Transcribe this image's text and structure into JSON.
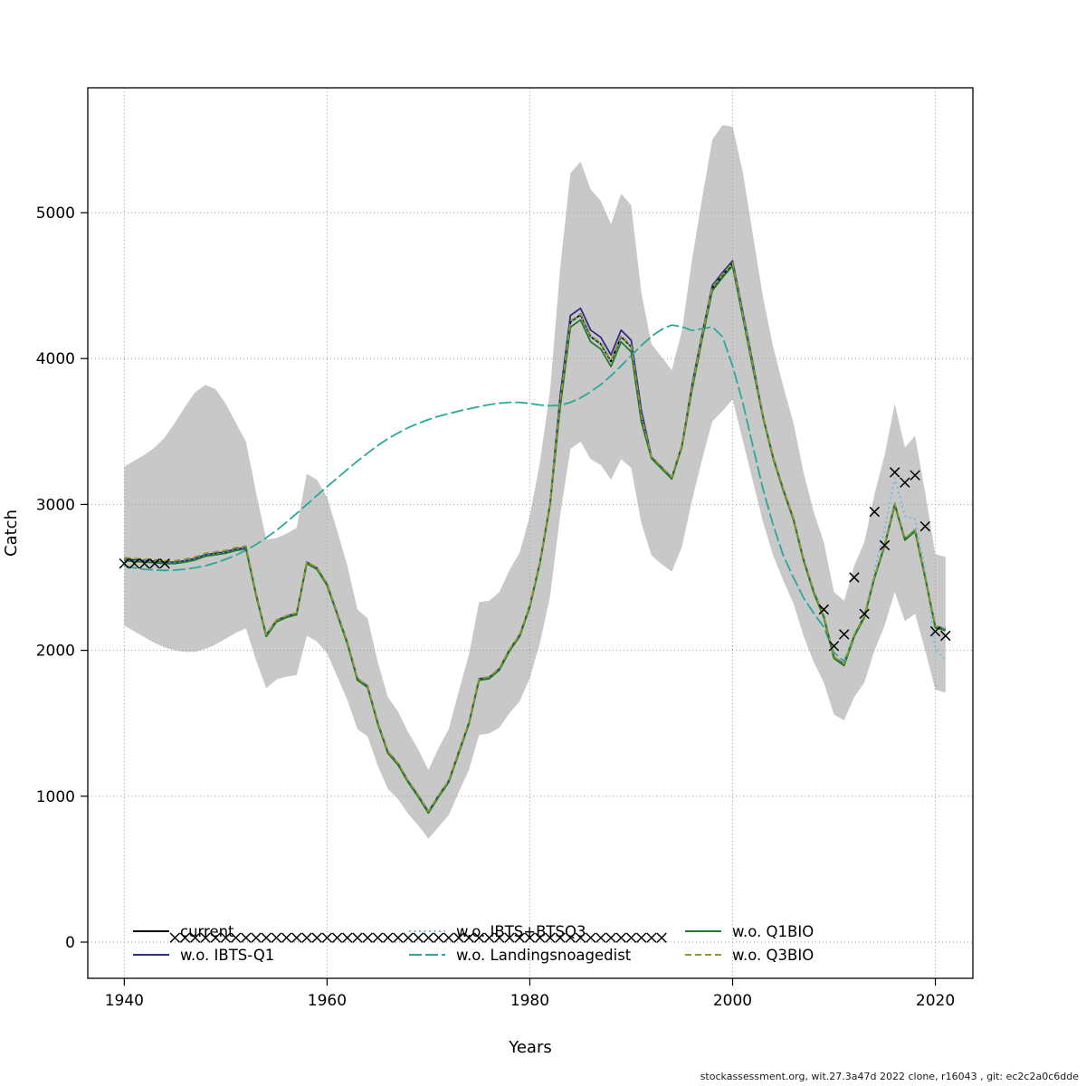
{
  "figure": {
    "background": "#ffffff",
    "footer": "stockassessment.org, wit.27.3a47d 2022 clone, r16043 , git: ec2c2a0c6dde"
  },
  "chart_data": {
    "type": "line",
    "title": "",
    "xlabel": "Years",
    "ylabel": "Catch",
    "xlim": [
      1936.4,
      2023.7
    ],
    "ylim": [
      -248,
      5856
    ],
    "xticks": [
      1940,
      1960,
      1980,
      2000,
      2020
    ],
    "yticks": [
      0,
      1000,
      2000,
      3000,
      4000,
      5000
    ],
    "grid": true,
    "grid_color": "#9a9a9a",
    "legend_position": "bottom-inside",
    "years": {
      "from": 1940,
      "to": 2021
    },
    "band": {
      "color": "#c8c8c8",
      "lower": [
        2170,
        2130,
        2090,
        2050,
        2020,
        2000,
        1990,
        1990,
        2010,
        2040,
        2080,
        2120,
        2150,
        1930,
        1740,
        1800,
        1820,
        1830,
        2100,
        2060,
        1980,
        1820,
        1660,
        1460,
        1410,
        1210,
        1050,
        980,
        880,
        800,
        710,
        790,
        870,
        1030,
        1180,
        1420,
        1430,
        1470,
        1570,
        1650,
        1810,
        2050,
        2370,
        2930,
        3380,
        3430,
        3310,
        3270,
        3170,
        3310,
        3250,
        2870,
        2650,
        2590,
        2540,
        2710,
        3030,
        3310,
        3570,
        3640,
        3720,
        3440,
        3160,
        2880,
        2650,
        2480,
        2320,
        2100,
        1920,
        1780,
        1560,
        1520,
        1680,
        1780,
        2000,
        2170,
        2400,
        2200,
        2250,
        2000,
        1730,
        1710
      ],
      "upper": [
        3260,
        3300,
        3340,
        3390,
        3460,
        3560,
        3670,
        3770,
        3820,
        3790,
        3690,
        3560,
        3430,
        3080,
        2760,
        2770,
        2800,
        2840,
        3210,
        3170,
        3050,
        2820,
        2580,
        2280,
        2220,
        1920,
        1680,
        1580,
        1440,
        1320,
        1180,
        1330,
        1460,
        1720,
        1970,
        2330,
        2340,
        2400,
        2550,
        2670,
        2920,
        3290,
        3780,
        4620,
        5270,
        5350,
        5160,
        5080,
        4920,
        5130,
        5050,
        4450,
        4100,
        4010,
        3920,
        4190,
        4680,
        5100,
        5500,
        5600,
        5590,
        5280,
        4850,
        4420,
        4080,
        3810,
        3560,
        3220,
        2950,
        2740,
        2400,
        2340,
        2580,
        2740,
        3070,
        3340,
        3690,
        3390,
        3470,
        3080,
        2660,
        2640
      ]
    },
    "series": [
      {
        "label": "current",
        "color": "#000000",
        "dash": "",
        "values": [
          2620,
          2615,
          2610,
          2605,
          2600,
          2600,
          2610,
          2625,
          2650,
          2660,
          2670,
          2690,
          2700,
          2380,
          2100,
          2200,
          2230,
          2250,
          2600,
          2560,
          2450,
          2250,
          2050,
          1800,
          1750,
          1500,
          1300,
          1220,
          1100,
          1000,
          890,
          1000,
          1100,
          1300,
          1500,
          1800,
          1810,
          1870,
          2000,
          2100,
          2300,
          2600,
          3000,
          3700,
          4250,
          4300,
          4150,
          4100,
          3980,
          4150,
          4080,
          3600,
          3320,
          3250,
          3180,
          3400,
          3800,
          4150,
          4480,
          4570,
          4650,
          4300,
          3950,
          3600,
          3320,
          3100,
          2900,
          2620,
          2400,
          2230,
          1950,
          1900,
          2100,
          2230,
          2500,
          2720,
          3000,
          2760,
          2820,
          2500,
          2160,
          2140
        ]
      },
      {
        "label": "w.o. IBTS-Q1",
        "color": "#2d2d86",
        "dash": "",
        "values": [
          2625,
          2620,
          2615,
          2610,
          2605,
          2605,
          2615,
          2630,
          2655,
          2665,
          2675,
          2695,
          2705,
          2385,
          2105,
          2205,
          2235,
          2255,
          2605,
          2565,
          2455,
          2255,
          2055,
          1805,
          1755,
          1505,
          1305,
          1225,
          1105,
          1005,
          895,
          1005,
          1105,
          1305,
          1505,
          1805,
          1815,
          1875,
          2005,
          2105,
          2305,
          2605,
          3005,
          3745,
          4295,
          4345,
          4195,
          4145,
          4025,
          4195,
          4125,
          3645,
          3325,
          3255,
          3185,
          3405,
          3820,
          4170,
          4500,
          4590,
          4670,
          4320,
          3970,
          3605,
          3325,
          3105,
          2905,
          2625,
          2405,
          2235,
          1955,
          1905,
          2105,
          2235,
          2505,
          2725,
          3005,
          2765,
          2825,
          2505,
          2165,
          2145
        ]
      },
      {
        "label": "w.o. IBTS+BTSQ3",
        "color": "#74b8e0",
        "dash": "2 3.5",
        "values": [
          2620,
          2615,
          2610,
          2605,
          2600,
          2600,
          2610,
          2625,
          2650,
          2660,
          2670,
          2690,
          2700,
          2380,
          2100,
          2200,
          2230,
          2250,
          2600,
          2560,
          2450,
          2250,
          2050,
          1800,
          1750,
          1500,
          1300,
          1220,
          1100,
          1000,
          890,
          1000,
          1100,
          1300,
          1500,
          1800,
          1810,
          1870,
          2000,
          2100,
          2300,
          2600,
          3000,
          3700,
          4250,
          4300,
          4150,
          4100,
          3980,
          4150,
          4080,
          3600,
          3320,
          3250,
          3180,
          3400,
          3800,
          4150,
          4480,
          4570,
          4650,
          4300,
          3950,
          3600,
          3320,
          3100,
          2900,
          2620,
          2400,
          2230,
          1950,
          1900,
          2100,
          2230,
          2550,
          2830,
          3180,
          2920,
          2900,
          2550,
          2010,
          1930
        ]
      },
      {
        "label": "w.o. Landingsnoagedist",
        "color": "#2aa79b",
        "dash": "14 4",
        "values": [
          2580,
          2565,
          2555,
          2550,
          2548,
          2550,
          2556,
          2566,
          2580,
          2600,
          2624,
          2652,
          2686,
          2726,
          2772,
          2822,
          2878,
          2938,
          3000,
          3062,
          3122,
          3180,
          3240,
          3298,
          3352,
          3404,
          3450,
          3490,
          3526,
          3556,
          3582,
          3604,
          3622,
          3640,
          3656,
          3670,
          3684,
          3694,
          3700,
          3700,
          3692,
          3682,
          3676,
          3680,
          3700,
          3730,
          3772,
          3822,
          3882,
          3950,
          4020,
          4090,
          4152,
          4200,
          4230,
          4218,
          4192,
          4205,
          4218,
          4150,
          3950,
          3700,
          3400,
          3105,
          2860,
          2650,
          2500,
          2360,
          2255,
          2160,
          1985,
          1925,
          2105,
          2235,
          2505,
          2725,
          3005,
          2765,
          2825,
          2505,
          2165,
          2145
        ]
      },
      {
        "label": "w.o. Q1BIO",
        "color": "#1f7a28",
        "dash": "",
        "values": [
          2615,
          2610,
          2605,
          2600,
          2595,
          2595,
          2605,
          2620,
          2645,
          2655,
          2665,
          2685,
          2695,
          2375,
          2095,
          2195,
          2225,
          2245,
          2595,
          2555,
          2445,
          2245,
          2045,
          1795,
          1745,
          1495,
          1295,
          1215,
          1095,
          995,
          885,
          995,
          1095,
          1295,
          1495,
          1795,
          1805,
          1865,
          1995,
          2095,
          2295,
          2595,
          2995,
          3665,
          4215,
          4265,
          4115,
          4065,
          3945,
          4115,
          4045,
          3565,
          3315,
          3245,
          3175,
          3395,
          3785,
          4135,
          4465,
          4555,
          4635,
          4285,
          3935,
          3595,
          3315,
          3095,
          2895,
          2615,
          2395,
          2225,
          1945,
          1895,
          2095,
          2225,
          2495,
          2715,
          2995,
          2755,
          2815,
          2495,
          2155,
          2135
        ]
      },
      {
        "label": "w.o. Q3BIO",
        "color": "#97972e",
        "dash": "7 4",
        "values": [
          2635,
          2630,
          2625,
          2620,
          2615,
          2615,
          2625,
          2640,
          2665,
          2675,
          2685,
          2705,
          2715,
          2388,
          2108,
          2208,
          2238,
          2258,
          2608,
          2568,
          2458,
          2258,
          2058,
          1808,
          1758,
          1508,
          1308,
          1228,
          1108,
          1008,
          898,
          1008,
          1108,
          1308,
          1508,
          1808,
          1818,
          1878,
          2008,
          2108,
          2308,
          2608,
          3008,
          3708,
          4258,
          4308,
          4158,
          4108,
          3988,
          4158,
          4088,
          3608,
          3328,
          3258,
          3188,
          3408,
          3808,
          4158,
          4488,
          4578,
          4658,
          4308,
          3958,
          3608,
          3328,
          3108,
          2908,
          2628,
          2408,
          2238,
          1958,
          1908,
          2108,
          2238,
          2508,
          2728,
          3008,
          2768,
          2828,
          2508,
          2168,
          2148
        ]
      }
    ],
    "markers": {
      "symbol": "x",
      "color": "#000000",
      "points": [
        [
          1940,
          2595
        ],
        [
          1941,
          2595
        ],
        [
          1942,
          2595
        ],
        [
          1943,
          2595
        ],
        [
          1944,
          2595
        ],
        [
          2009,
          2280
        ],
        [
          2010,
          2030
        ],
        [
          2011,
          2110
        ],
        [
          2012,
          2500
        ],
        [
          2013,
          2250
        ],
        [
          2014,
          2950
        ],
        [
          2015,
          2720
        ],
        [
          2016,
          3220
        ],
        [
          2017,
          3150
        ],
        [
          2018,
          3200
        ],
        [
          2019,
          2850
        ],
        [
          2020,
          2130
        ],
        [
          2021,
          2100
        ]
      ],
      "zero_row": {
        "from": 1945,
        "to": 1993,
        "value": 30
      }
    }
  }
}
